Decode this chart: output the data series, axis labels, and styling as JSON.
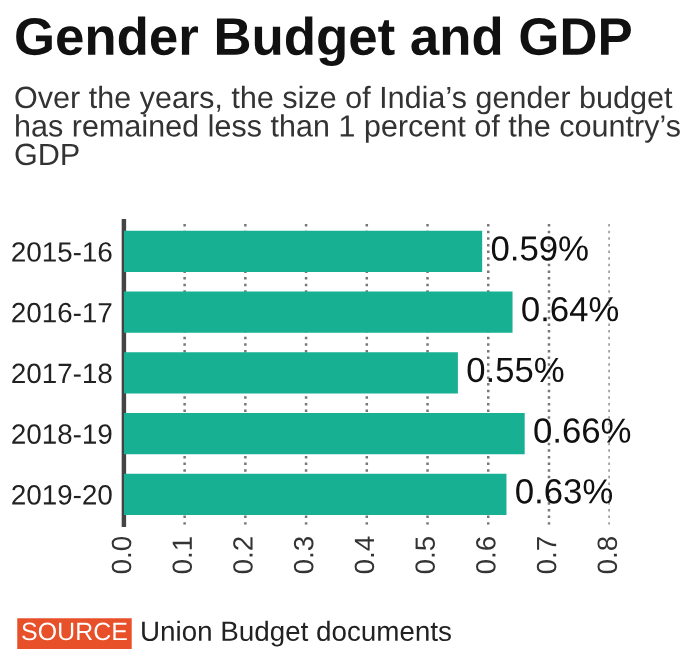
{
  "chart_data": {
    "type": "bar",
    "orientation": "horizontal",
    "title": "Gender Budget and GDP",
    "subtitle": "Over the years, the size of India’s gender budget has remained less than 1 percent of the country’s GDP",
    "categories": [
      "2015-16",
      "2016-17",
      "2017-18",
      "2018-19",
      "2019-20"
    ],
    "values": [
      0.59,
      0.64,
      0.55,
      0.66,
      0.63
    ],
    "value_labels": [
      "0.59%",
      "0.64%",
      "0.55%",
      "0.66%",
      "0.63%"
    ],
    "color": "#17b092",
    "xlim": [
      0,
      0.8
    ],
    "xticks": [
      {
        "value": 0,
        "label": "0.0"
      },
      0.1,
      0.2,
      0.3,
      0.4,
      0.5,
      0.6,
      0.7,
      0.8
    ],
    "grid": "x",
    "line_style": "dotted",
    "legend": false,
    "annotations": [
      "SOURCE",
      "Union Budget documents"
    ]
  }
}
